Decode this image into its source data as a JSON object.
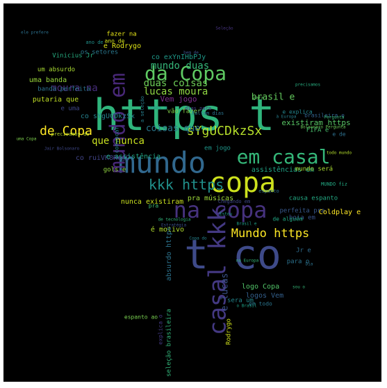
{
  "wordcloud": {
    "words": [
      {
        "text": "https t",
        "color": "#2fb47c"
      },
      {
        "text": "t co",
        "color": "#3e4a89"
      },
      {
        "text": "copa",
        "color": "#cde11d"
      },
      {
        "text": "mundo",
        "color": "#31688e"
      },
      {
        "text": "em casal",
        "color": "#35b779"
      },
      {
        "text": "da Copa",
        "color": "#5ec962"
      },
      {
        "text": "na copa",
        "color": "#46327e"
      },
      {
        "text": "mundo em",
        "color": "#482878"
      },
      {
        "text": "casal kkk",
        "color": "#443983"
      },
      {
        "text": "kkk https",
        "color": "#21918c"
      },
      {
        "text": "Mundo https",
        "color": "#fde725"
      },
      {
        "text": "sYgUCDkzSx",
        "color": "#b5de2b"
      },
      {
        "text": "de Copa",
        "color": "#fde725"
      },
      {
        "text": "lucas moura",
        "color": "#90d743"
      },
      {
        "text": "duas coisas",
        "color": "#6ece58"
      },
      {
        "text": "mundo duas",
        "color": "#35b779"
      },
      {
        "text": "moura na",
        "color": "#472d7b"
      },
      {
        "text": "que nunca",
        "color": "#c8e020"
      },
      {
        "text": "coisas que",
        "color": "#2a788e"
      },
      {
        "text": "brasil e",
        "color": "#65cb5e"
      },
      {
        "text": "co sYgUCDkzSx",
        "color": "#26828e"
      },
      {
        "text": "e lucas",
        "color": "#3b528b"
      },
      {
        "text": "co ruiVK8RojO",
        "color": "#414487"
      },
      {
        "text": "banda perfeita",
        "color": "#2c728e"
      },
      {
        "text": "uma banda",
        "color": "#9bd93c"
      },
      {
        "text": "putaria que",
        "color": "#c0df25"
      },
      {
        "text": "um absurdo",
        "color": "#aadc32"
      },
      {
        "text": "Vinicius Jr",
        "color": "#27ad81"
      },
      {
        "text": "co exYnIHbPJy",
        "color": "#1f9a8a"
      },
      {
        "text": "e Rodrygo",
        "color": "#dde318"
      },
      {
        "text": "fazer na",
        "color": "#e5e419"
      },
      {
        "text": "ano de",
        "color": "#d2e21b"
      },
      {
        "text": "os setores",
        "color": "#2a788e"
      },
      {
        "text": "vão fazer",
        "color": "#84d44b"
      },
      {
        "text": "Vem jogo",
        "color": "#7d2e8d"
      },
      {
        "text": "e uma",
        "color": "#3f4788"
      },
      {
        "text": "existiram https",
        "color": "#58c765"
      },
      {
        "text": "e explica",
        "color": "#24868e"
      },
      {
        "text": "brasileira e",
        "color": "#33628d"
      },
      {
        "text": "FIFA e",
        "color": "#4ac16d"
      },
      {
        "text": "e de",
        "color": "#2d708e"
      },
      {
        "text": "em jogo",
        "color": "#1f978b"
      },
      {
        "text": "e assistência",
        "color": "#21a685"
      },
      {
        "text": "assistências em",
        "color": "#20a386"
      },
      {
        "text": "mundo será",
        "color": "#aadc32"
      },
      {
        "text": "gols e",
        "color": "#93d741"
      },
      {
        "text": "nunca existiram",
        "color": "#cae11f"
      },
      {
        "text": "pra músicas",
        "color": "#9fda3a"
      },
      {
        "text": "causa espanto",
        "color": "#23a983"
      },
      {
        "text": "perfeita pra",
        "color": "#38588c"
      },
      {
        "text": "boia em",
        "color": "#3a548c"
      },
      {
        "text": "Coldplay e",
        "color": "#fde725"
      },
      {
        "text": "é motivo",
        "color": "#b2dd2d"
      },
      {
        "text": "absurdo https",
        "color": "#2c738e"
      },
      {
        "text": "logo Copa",
        "color": "#52c569"
      },
      {
        "text": "logos Vem",
        "color": "#34608d"
      },
      {
        "text": "sera um",
        "color": "#24878e"
      },
      {
        "text": "Rodrygo",
        "color": "#d0e11c"
      },
      {
        "text": "Jr e",
        "color": "#2f6c8e"
      },
      {
        "text": "para o",
        "color": "#2c728e"
      },
      {
        "text": "seleção brasileira",
        "color": "#32b67a"
      },
      {
        "text": "explica o",
        "color": "#443a83"
      },
      {
        "text": "espanto ao",
        "color": "#7ad151"
      },
      {
        "text": "em todo",
        "color": "#2b758e"
      },
      {
        "text": "pra",
        "color": "#3dbc74"
      },
      {
        "text": "de alguém",
        "color": "#22a884"
      },
      {
        "text": "convocar",
        "color": "#238a8d"
      },
      {
        "text": "Chegando em",
        "color": "#3f4889"
      },
      {
        "text": "todos o",
        "color": "#228d8d"
      },
      {
        "text": "Faltam dias",
        "color": "#2b748e"
      },
      {
        "text": "a seleção",
        "color": "#277f8e"
      },
      {
        "text": "dias para",
        "color": "#443983"
      },
      {
        "text": "de tecnologia",
        "color": "#31b57b"
      },
      {
        "text": "Brasil e",
        "color": "#1fa088"
      },
      {
        "text": "ano de",
        "color": "#21918c"
      },
      {
        "text": "ele prefere",
        "color": "#2c718e"
      },
      {
        "text": "precisamos de",
        "color": "#b8de29"
      },
      {
        "text": "uma Copa",
        "color": "#7fd34e"
      },
      {
        "text": "Jair Bolsonaro",
        "color": "#3f4889"
      },
      {
        "text": "Pergunta",
        "color": "#3aba76"
      },
      {
        "text": "à Europa",
        "color": "#277f8e"
      },
      {
        "text": "na Europa",
        "color": "#35b779"
      },
      {
        "text": "para",
        "color": "#5cc863"
      },
      {
        "text": "bem de",
        "color": "#3b528b"
      },
      {
        "text": "Seleção",
        "color": "#46337f"
      },
      {
        "text": "o Brasil",
        "color": "#1fa287"
      },
      {
        "text": "todo mundo",
        "color": "#b4de2c"
      },
      {
        "text": "precisamos",
        "color": "#28ae80"
      },
      {
        "text": "Bolsonaro Pergunta",
        "color": "#6ccd5a"
      },
      {
        "text": "MUNDO fiz",
        "color": "#23a983"
      },
      {
        "text": "espanto",
        "color": "#2d708e"
      },
      {
        "text": "sou o",
        "color": "#37b878"
      },
      {
        "text": "Dia",
        "color": "#2c728e"
      },
      {
        "text": "Estratégia",
        "color": "#3b518b"
      },
      {
        "text": "Estou",
        "color": "#1e9d89"
      },
      {
        "text": "Copa do",
        "color": "#25838e"
      }
    ]
  }
}
